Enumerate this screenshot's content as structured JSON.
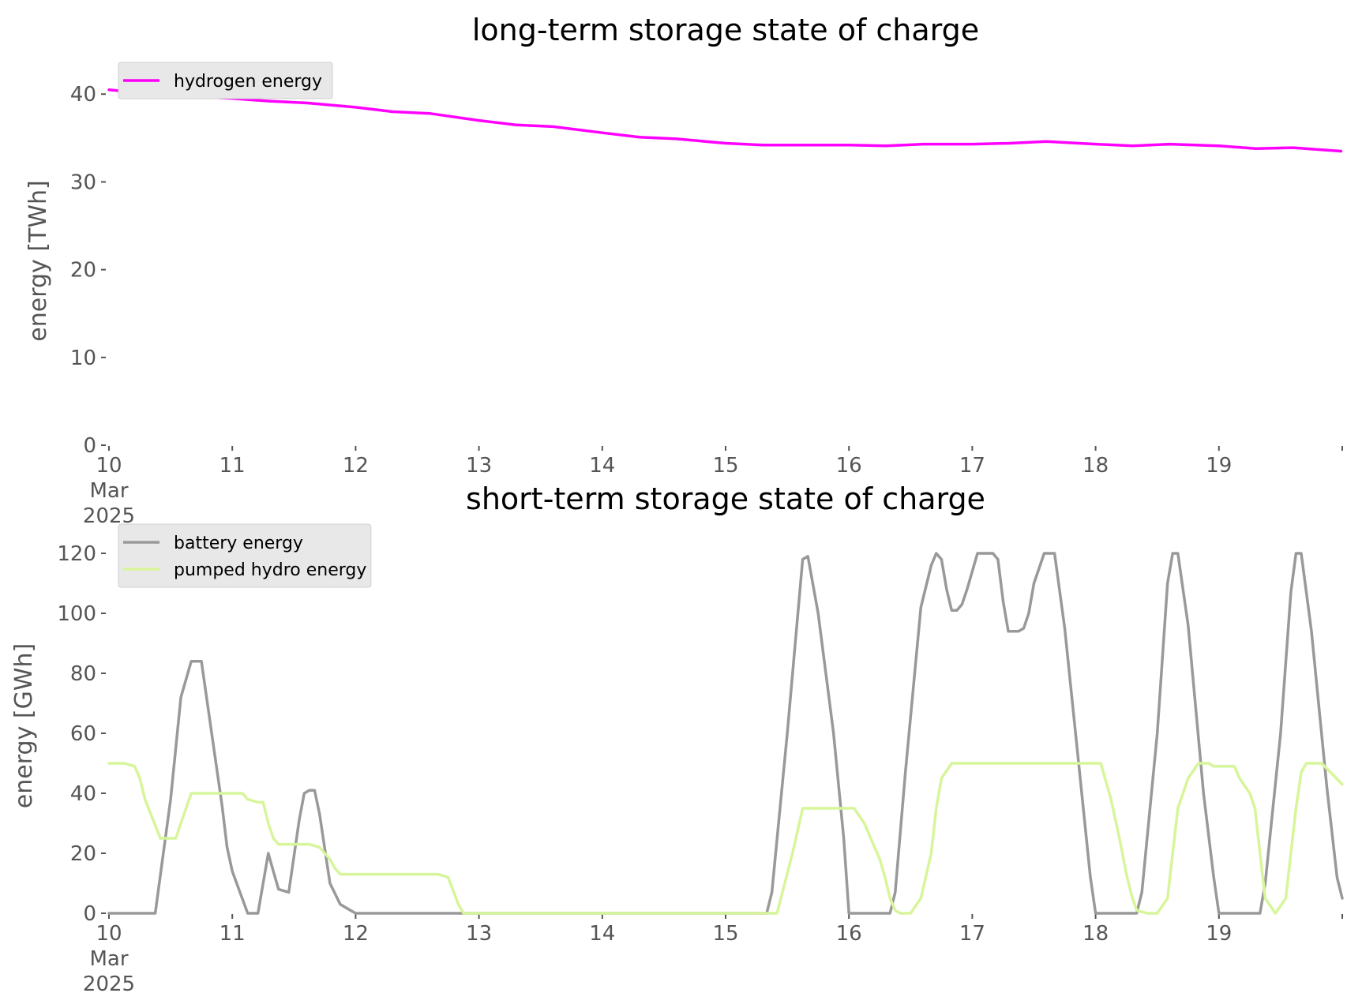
{
  "chart_data": [
    {
      "type": "line",
      "title": "long-term storage state of charge",
      "xlabel": "",
      "ylabel": "energy [TWh]",
      "x_tick_labels": [
        "10\nMar\n2025",
        "11",
        "12",
        "13",
        "14",
        "15",
        "16",
        "17",
        "18",
        "19",
        ""
      ],
      "x_ticks": [
        10,
        11,
        12,
        13,
        14,
        15,
        16,
        17,
        18,
        19,
        20
      ],
      "xlim": [
        10,
        20
      ],
      "ylim": [
        0,
        42
      ],
      "y_ticks": [
        0,
        10,
        20,
        30,
        40
      ],
      "grid": false,
      "legend_position": "upper left",
      "series": [
        {
          "name": "hydrogen energy",
          "color": "#ff00ff",
          "x": [
            10.0,
            10.3,
            10.6,
            11.0,
            11.3,
            11.6,
            12.0,
            12.3,
            12.6,
            13.0,
            13.3,
            13.6,
            14.0,
            14.3,
            14.6,
            15.0,
            15.3,
            15.6,
            16.0,
            16.3,
            16.6,
            17.0,
            17.3,
            17.6,
            18.0,
            18.3,
            18.6,
            19.0,
            19.3,
            19.6,
            19.99
          ],
          "values": [
            40.5,
            40.1,
            39.8,
            39.5,
            39.2,
            39.0,
            38.5,
            38.0,
            37.8,
            37.0,
            36.5,
            36.3,
            35.6,
            35.1,
            34.9,
            34.4,
            34.2,
            34.2,
            34.2,
            34.1,
            34.3,
            34.3,
            34.4,
            34.6,
            34.3,
            34.1,
            34.3,
            34.1,
            33.8,
            33.9,
            33.5
          ]
        }
      ]
    },
    {
      "type": "line",
      "title": "short-term storage state of charge",
      "xlabel": "",
      "ylabel": "energy [GWh]",
      "x_tick_labels": [
        "10\nMar\n2025",
        "11",
        "12",
        "13",
        "14",
        "15",
        "16",
        "17",
        "18",
        "19",
        ""
      ],
      "x_ticks": [
        10,
        11,
        12,
        13,
        14,
        15,
        16,
        17,
        18,
        19,
        20
      ],
      "xlim": [
        10,
        20
      ],
      "ylim": [
        0,
        125
      ],
      "y_ticks": [
        0,
        20,
        40,
        60,
        80,
        100,
        120
      ],
      "grid": false,
      "legend_position": "upper left",
      "series": [
        {
          "name": "battery energy",
          "color": "#999999",
          "x": [
            10.0,
            10.375,
            10.5,
            10.583,
            10.667,
            10.75,
            10.833,
            10.917,
            10.958,
            11.0,
            11.125,
            11.208,
            11.292,
            11.333,
            11.375,
            11.458,
            11.542,
            11.583,
            11.625,
            11.667,
            11.708,
            11.792,
            11.875,
            11.958,
            12.0,
            15.333,
            15.375,
            15.5,
            15.625,
            15.667,
            15.75,
            15.875,
            15.958,
            16.0,
            16.333,
            16.375,
            16.458,
            16.583,
            16.667,
            16.708,
            16.75,
            16.792,
            16.833,
            16.875,
            16.917,
            16.958,
            17.042,
            17.167,
            17.208,
            17.25,
            17.292,
            17.375,
            17.417,
            17.458,
            17.5,
            17.583,
            17.667,
            17.75,
            17.875,
            17.958,
            18.0,
            18.333,
            18.375,
            18.5,
            18.583,
            18.625,
            18.667,
            18.75,
            18.875,
            18.958,
            19.0,
            19.333,
            19.375,
            19.5,
            19.583,
            19.625,
            19.667,
            19.75,
            19.875,
            19.958,
            20.0
          ],
          "values": [
            0,
            0,
            38,
            72,
            84,
            84,
            60,
            36,
            22,
            14,
            0,
            0,
            20,
            14,
            8,
            7,
            31,
            40,
            41,
            41,
            33,
            10,
            3,
            1,
            0,
            0,
            7,
            60,
            118,
            119,
            100,
            60,
            25,
            0,
            0,
            7,
            47,
            102,
            116,
            120,
            118,
            108,
            101,
            101,
            103,
            108,
            120,
            120,
            118,
            104,
            94,
            94,
            95,
            100,
            110,
            120,
            120,
            95,
            45,
            12,
            0,
            0,
            7,
            60,
            110,
            120,
            120,
            96,
            40,
            12,
            0,
            0,
            10,
            60,
            107,
            120,
            120,
            94,
            42,
            12,
            5
          ]
        },
        {
          "name": "pumped hydro energy",
          "color": "#d7f59a",
          "x": [
            10.0,
            10.125,
            10.208,
            10.25,
            10.292,
            10.417,
            10.458,
            10.542,
            10.583,
            10.667,
            10.75,
            10.875,
            10.958,
            11.0,
            11.083,
            11.125,
            11.208,
            11.25,
            11.292,
            11.333,
            11.375,
            11.458,
            11.542,
            11.625,
            11.708,
            11.792,
            11.833,
            11.875,
            11.958,
            12.0,
            12.667,
            12.75,
            12.833,
            12.875,
            13.0,
            15.375,
            15.417,
            15.542,
            15.625,
            15.667,
            15.833,
            15.958,
            16.0,
            16.042,
            16.125,
            16.208,
            16.25,
            16.292,
            16.333,
            16.375,
            16.417,
            16.5,
            16.583,
            16.667,
            16.708,
            16.75,
            16.833,
            17.0,
            17.5,
            17.958,
            18.0,
            18.042,
            18.125,
            18.167,
            18.208,
            18.25,
            18.292,
            18.333,
            18.417,
            18.5,
            18.583,
            18.625,
            18.667,
            18.75,
            18.833,
            18.917,
            18.958,
            19.0,
            19.042,
            19.125,
            19.167,
            19.25,
            19.292,
            19.333,
            19.375,
            19.458,
            19.542,
            19.583,
            19.625,
            19.667,
            19.708,
            19.75,
            19.833,
            20.0
          ],
          "values": [
            50,
            50,
            49,
            45,
            38,
            25,
            25,
            25,
            30,
            40,
            40,
            40,
            40,
            40,
            40,
            38,
            37,
            37,
            30,
            25,
            23,
            23,
            23,
            23,
            22,
            18,
            15,
            13,
            13,
            13,
            13,
            12,
            3,
            0,
            0,
            0,
            0,
            20,
            35,
            35,
            35,
            35,
            35,
            35,
            30,
            22,
            18,
            12,
            5,
            1,
            0,
            0,
            5,
            20,
            35,
            45,
            50,
            50,
            50,
            50,
            50,
            50,
            38,
            30,
            22,
            13,
            6,
            1,
            0,
            0,
            5,
            20,
            35,
            45,
            50,
            50,
            49,
            49,
            49,
            49,
            45,
            40,
            35,
            20,
            5,
            0,
            5,
            20,
            35,
            47,
            50,
            50,
            50,
            43
          ]
        }
      ]
    }
  ]
}
